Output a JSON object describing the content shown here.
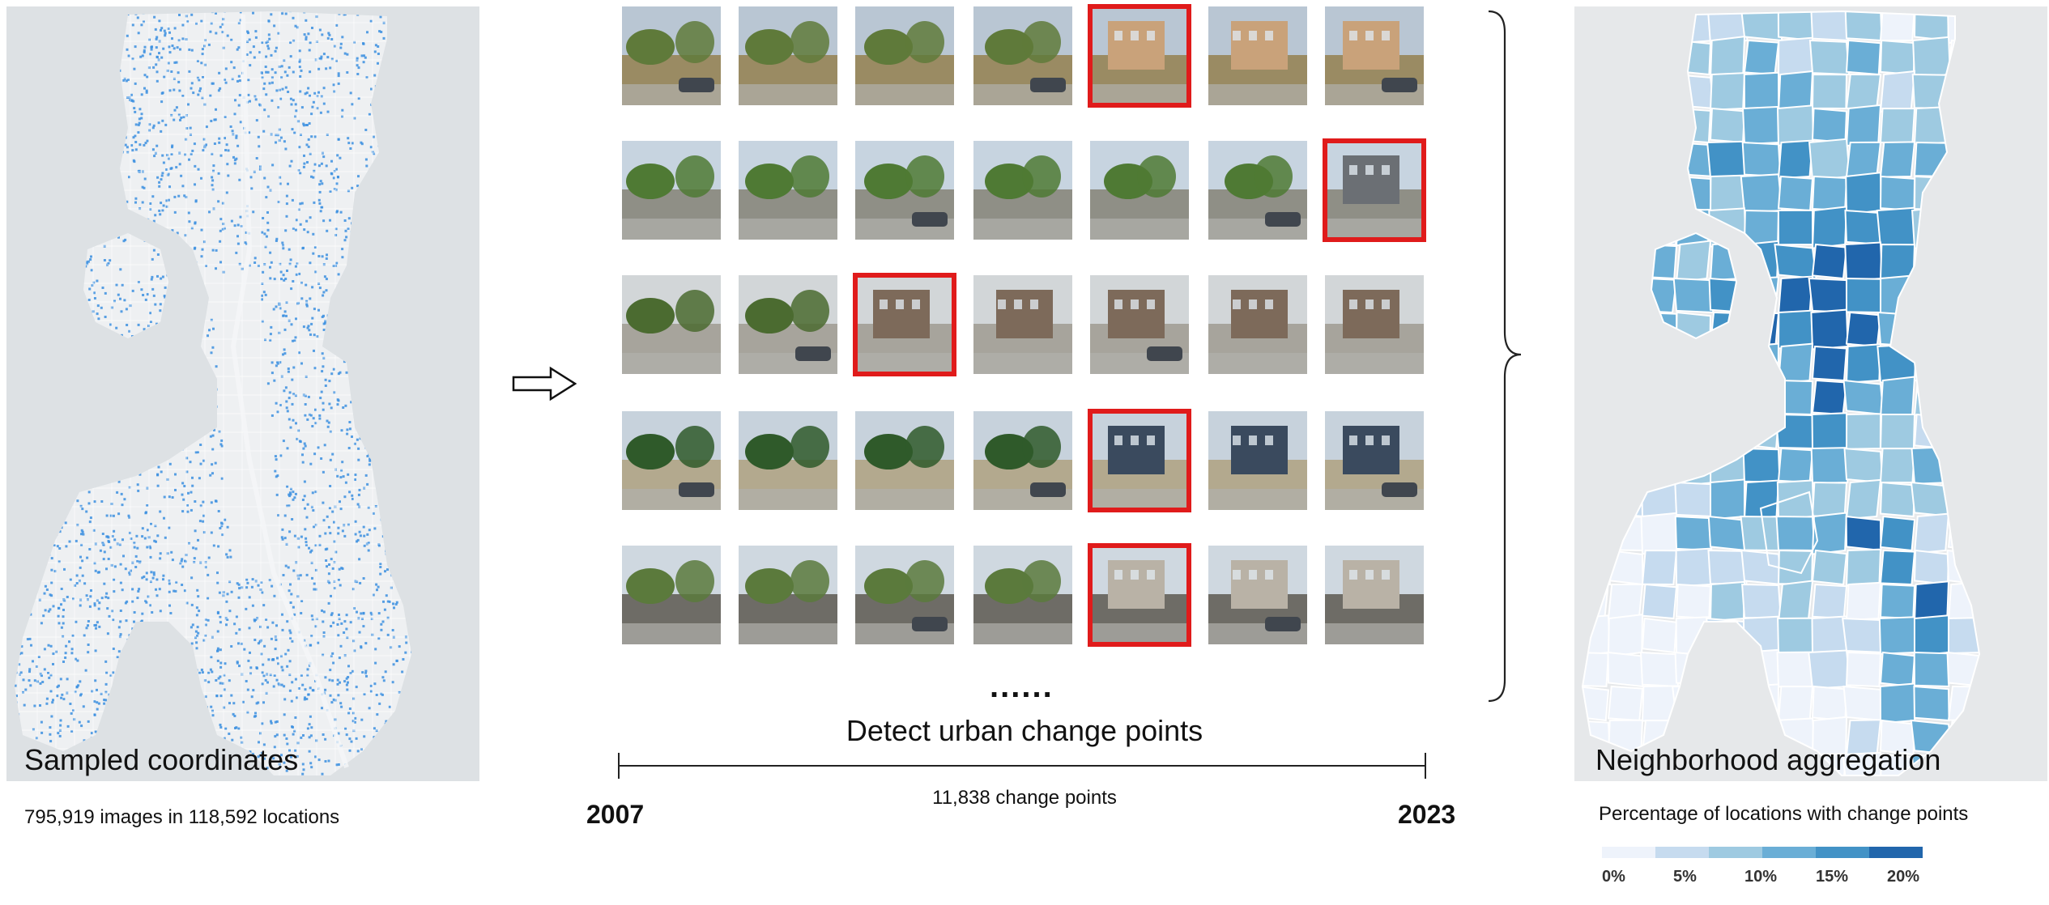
{
  "left_panel": {
    "caption": "Sampled coordinates",
    "stats": "795,919 images in 118,592 locations",
    "water_color": "#dde1e4",
    "land_color": "#eef0f2",
    "point_color": "#3b8fe0"
  },
  "middle_panel": {
    "title": "Detect urban change points",
    "ellipsis": "......",
    "timeline_start": "2007",
    "timeline_end": "2023",
    "change_count": "11,838 change points",
    "highlight_color": "#e01b1b",
    "rows": [
      {
        "scene": "yard-to-house",
        "change_index": 4
      },
      {
        "scene": "trees-to-modern-house",
        "change_index": 6
      },
      {
        "scene": "driveway-house",
        "change_index": 2
      },
      {
        "scene": "lot-to-apartment",
        "change_index": 4
      },
      {
        "scene": "house-replacement",
        "change_index": 4
      }
    ]
  },
  "right_panel": {
    "caption": "Neighborhood aggregation",
    "legend_title": "Percentage of locations with change points",
    "legend_labels": [
      "0%",
      "5%",
      "10%",
      "15%",
      "20%"
    ],
    "legend_colors": [
      "#eef3fb",
      "#c6dbef",
      "#9ecae1",
      "#6aaed6",
      "#4292c6",
      "#2166ac"
    ]
  }
}
